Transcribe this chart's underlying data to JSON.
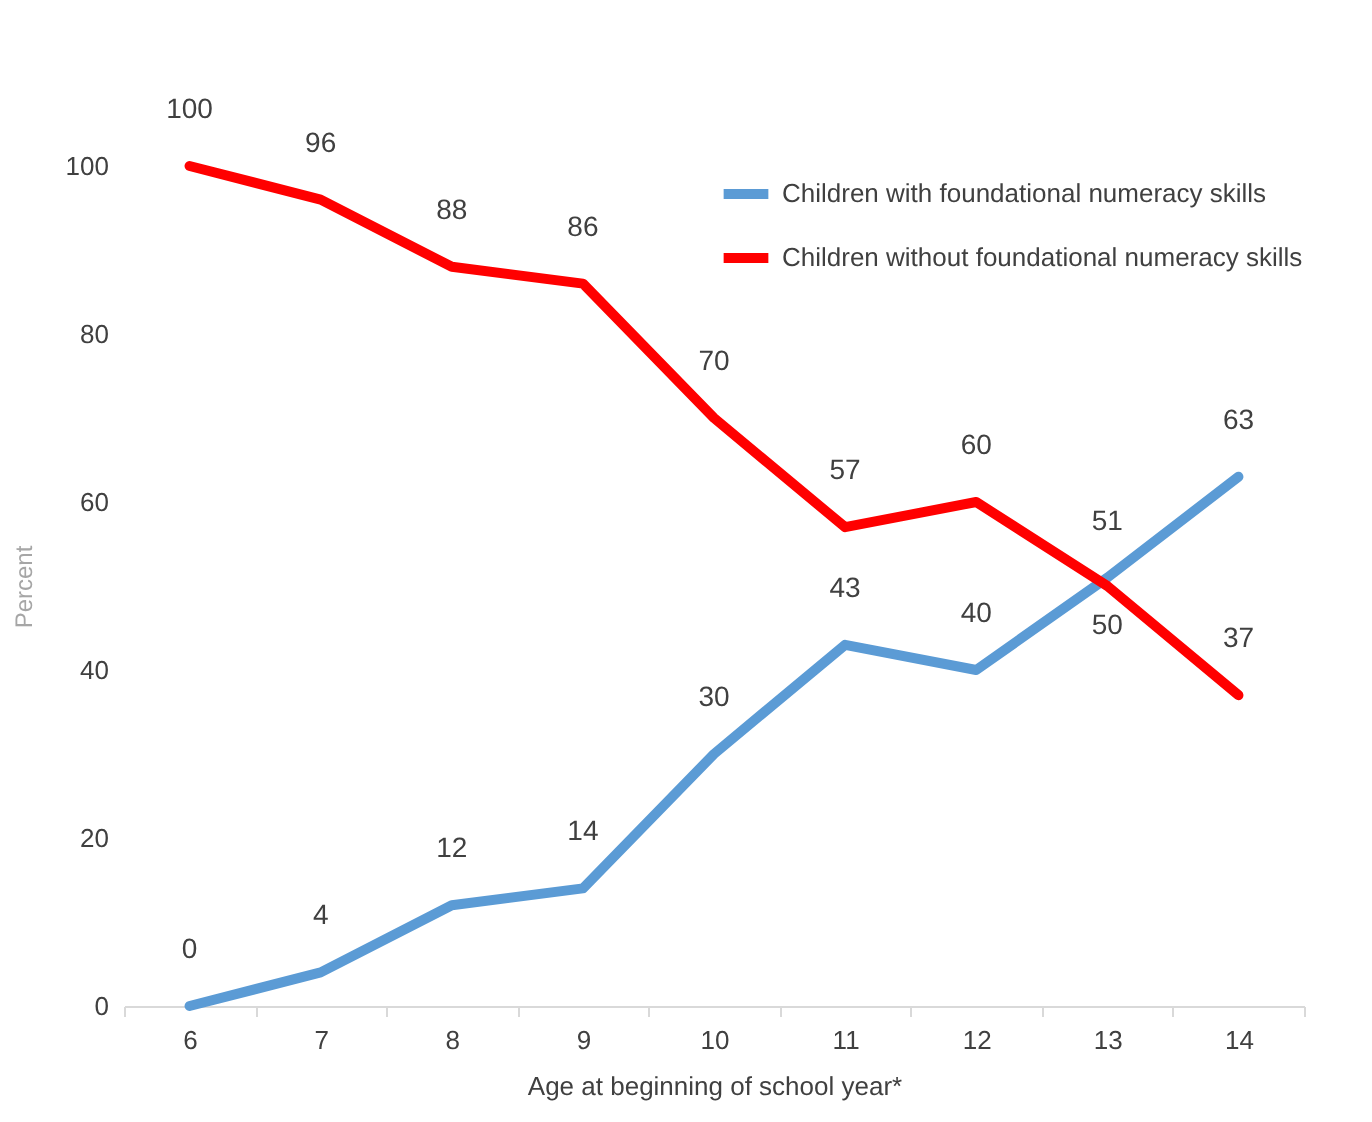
{
  "chart_data": {
    "type": "line",
    "xlabel": "Age at beginning of school year*",
    "ylabel": "Percent",
    "categories": [
      "6",
      "7",
      "8",
      "9",
      "10",
      "11",
      "12",
      "13",
      "14"
    ],
    "series": [
      {
        "name": "Children with foundational numeracy skills",
        "color": "#5b9bd5",
        "values": [
          0,
          4,
          12,
          14,
          30,
          43,
          40,
          51,
          63
        ]
      },
      {
        "name": "Children without foundational numeracy skills",
        "color": "#ff0000",
        "values": [
          100,
          96,
          88,
          86,
          70,
          57,
          60,
          50,
          37
        ]
      }
    ],
    "ylim": [
      0,
      100
    ],
    "yticks": [
      0,
      20,
      40,
      60,
      80,
      100
    ],
    "grid": false,
    "legend": "top right",
    "data_labels": true,
    "marker": "none",
    "line_style": "solid"
  }
}
